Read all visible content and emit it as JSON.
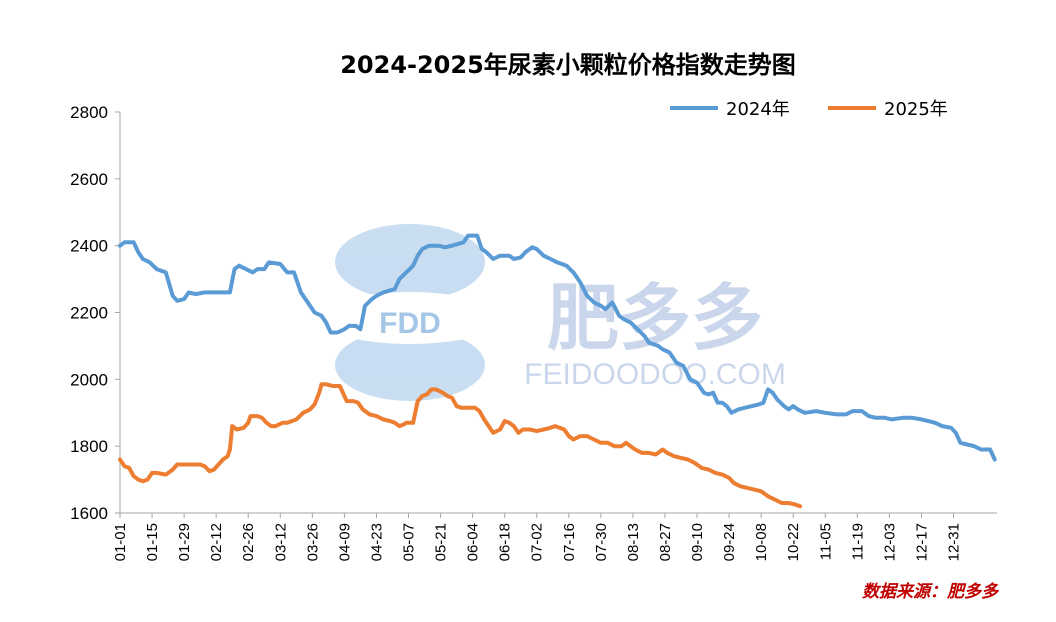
{
  "title": "2024-2025年尿素小颗粒价格指数走势图",
  "source_text": "数据来源：肥多多",
  "watermark": {
    "logo_text": "FDD",
    "brand_cn": "肥多多",
    "brand_url": "FEIDOODOO.COM"
  },
  "colors": {
    "s2024": "#5B9BD5",
    "s2025": "#ED7D31",
    "source": "#C00000",
    "axis": "#A6A6A6"
  },
  "chart_data": {
    "type": "line",
    "title": "2024-2025年尿素小颗粒价格指数走势图",
    "xlabel": "",
    "ylabel": "",
    "ylim": [
      1600,
      2800
    ],
    "yticks": [
      1600,
      1800,
      2000,
      2200,
      2400,
      2600,
      2800
    ],
    "xticks": [
      "01-01",
      "01-15",
      "01-29",
      "02-12",
      "02-26",
      "03-12",
      "03-26",
      "04-09",
      "04-23",
      "05-07",
      "05-21",
      "06-04",
      "06-18",
      "07-02",
      "07-16",
      "07-30",
      "08-13",
      "08-27",
      "09-10",
      "09-24",
      "10-08",
      "10-22",
      "11-05",
      "11-19",
      "12-03",
      "12-17",
      "12-31"
    ],
    "x_unit": "day-of-year, 1 = 01-01",
    "legend": "top-right",
    "grid": false,
    "series": [
      {
        "name": "2024年",
        "color": "#5B9BD5",
        "points": [
          [
            1,
            2400
          ],
          [
            3,
            2410
          ],
          [
            7,
            2410
          ],
          [
            9,
            2380
          ],
          [
            11,
            2360
          ],
          [
            14,
            2350
          ],
          [
            17,
            2330
          ],
          [
            21,
            2320
          ],
          [
            24,
            2250
          ],
          [
            26,
            2235
          ],
          [
            29,
            2240
          ],
          [
            31,
            2260
          ],
          [
            34,
            2255
          ],
          [
            38,
            2260
          ],
          [
            45,
            2260
          ],
          [
            49,
            2260
          ],
          [
            51,
            2330
          ],
          [
            53,
            2340
          ],
          [
            56,
            2330
          ],
          [
            59,
            2320
          ],
          [
            61,
            2330
          ],
          [
            64,
            2330
          ],
          [
            66,
            2350
          ],
          [
            71,
            2345
          ],
          [
            74,
            2320
          ],
          [
            77,
            2320
          ],
          [
            80,
            2260
          ],
          [
            83,
            2230
          ],
          [
            86,
            2200
          ],
          [
            89,
            2190
          ],
          [
            91,
            2170
          ],
          [
            93,
            2140
          ],
          [
            96,
            2140
          ],
          [
            99,
            2150
          ],
          [
            101,
            2160
          ],
          [
            104,
            2160
          ],
          [
            106,
            2150
          ],
          [
            108,
            2220
          ],
          [
            111,
            2240
          ],
          [
            113,
            2250
          ],
          [
            116,
            2260
          ],
          [
            121,
            2270
          ],
          [
            123,
            2300
          ],
          [
            126,
            2320
          ],
          [
            129,
            2340
          ],
          [
            131,
            2370
          ],
          [
            133,
            2390
          ],
          [
            136,
            2400
          ],
          [
            140,
            2400
          ],
          [
            143,
            2395
          ],
          [
            146,
            2400
          ],
          [
            151,
            2410
          ],
          [
            153,
            2430
          ],
          [
            157,
            2430
          ],
          [
            159,
            2390
          ],
          [
            161,
            2380
          ],
          [
            164,
            2360
          ],
          [
            167,
            2370
          ],
          [
            171,
            2370
          ],
          [
            173,
            2360
          ],
          [
            176,
            2365
          ],
          [
            178,
            2380
          ],
          [
            181,
            2395
          ],
          [
            183,
            2390
          ],
          [
            186,
            2370
          ],
          [
            189,
            2360
          ],
          [
            192,
            2350
          ],
          [
            196,
            2340
          ],
          [
            199,
            2320
          ],
          [
            202,
            2290
          ],
          [
            205,
            2250
          ],
          [
            208,
            2230
          ],
          [
            211,
            2220
          ],
          [
            213,
            2210
          ],
          [
            216,
            2230
          ],
          [
            219,
            2190
          ],
          [
            221,
            2180
          ],
          [
            224,
            2170
          ],
          [
            227,
            2150
          ],
          [
            230,
            2130
          ],
          [
            232,
            2110
          ],
          [
            236,
            2100
          ],
          [
            238,
            2090
          ],
          [
            241,
            2080
          ],
          [
            244,
            2050
          ],
          [
            247,
            2040
          ],
          [
            250,
            2000
          ],
          [
            253,
            1990
          ],
          [
            256,
            1960
          ],
          [
            258,
            1955
          ],
          [
            260,
            1960
          ],
          [
            262,
            1930
          ],
          [
            264,
            1930
          ],
          [
            266,
            1920
          ],
          [
            268,
            1900
          ],
          [
            271,
            1910
          ],
          [
            274,
            1915
          ],
          [
            277,
            1920
          ],
          [
            280,
            1925
          ],
          [
            282,
            1930
          ],
          [
            284,
            1970
          ],
          [
            286,
            1960
          ],
          [
            288,
            1940
          ],
          [
            291,
            1920
          ],
          [
            293,
            1910
          ],
          [
            295,
            1920
          ],
          [
            297,
            1910
          ],
          [
            300,
            1900
          ],
          [
            305,
            1905
          ],
          [
            309,
            1900
          ],
          [
            314,
            1895
          ],
          [
            318,
            1895
          ],
          [
            321,
            1905
          ],
          [
            325,
            1905
          ],
          [
            328,
            1890
          ],
          [
            331,
            1885
          ],
          [
            335,
            1885
          ],
          [
            338,
            1880
          ],
          [
            343,
            1885
          ],
          [
            347,
            1885
          ],
          [
            351,
            1880
          ],
          [
            354,
            1875
          ],
          [
            357,
            1870
          ],
          [
            360,
            1860
          ],
          [
            364,
            1855
          ],
          [
            366,
            1840
          ],
          [
            368,
            1810
          ],
          [
            371,
            1805
          ],
          [
            374,
            1800
          ],
          [
            377,
            1790
          ],
          [
            381,
            1790
          ],
          [
            383,
            1760
          ]
        ]
      },
      {
        "name": "2025年",
        "color": "#ED7D31",
        "points": [
          [
            1,
            1760
          ],
          [
            3,
            1740
          ],
          [
            5,
            1735
          ],
          [
            7,
            1710
          ],
          [
            9,
            1700
          ],
          [
            11,
            1695
          ],
          [
            13,
            1700
          ],
          [
            15,
            1720
          ],
          [
            17,
            1720
          ],
          [
            21,
            1715
          ],
          [
            24,
            1730
          ],
          [
            26,
            1745
          ],
          [
            31,
            1745
          ],
          [
            36,
            1745
          ],
          [
            38,
            1740
          ],
          [
            40,
            1725
          ],
          [
            42,
            1730
          ],
          [
            44,
            1745
          ],
          [
            46,
            1760
          ],
          [
            48,
            1770
          ],
          [
            49,
            1790
          ],
          [
            50,
            1860
          ],
          [
            52,
            1850
          ],
          [
            55,
            1855
          ],
          [
            57,
            1870
          ],
          [
            58,
            1890
          ],
          [
            61,
            1890
          ],
          [
            63,
            1885
          ],
          [
            65,
            1870
          ],
          [
            67,
            1860
          ],
          [
            69,
            1860
          ],
          [
            72,
            1870
          ],
          [
            74,
            1870
          ],
          [
            76,
            1875
          ],
          [
            78,
            1880
          ],
          [
            81,
            1900
          ],
          [
            84,
            1910
          ],
          [
            86,
            1925
          ],
          [
            88,
            1960
          ],
          [
            89,
            1985
          ],
          [
            91,
            1985
          ],
          [
            94,
            1980
          ],
          [
            97,
            1980
          ],
          [
            98,
            1965
          ],
          [
            100,
            1935
          ],
          [
            103,
            1935
          ],
          [
            105,
            1930
          ],
          [
            107,
            1910
          ],
          [
            110,
            1895
          ],
          [
            113,
            1890
          ],
          [
            116,
            1880
          ],
          [
            119,
            1875
          ],
          [
            121,
            1870
          ],
          [
            123,
            1860
          ],
          [
            125,
            1865
          ],
          [
            126,
            1870
          ],
          [
            129,
            1870
          ],
          [
            131,
            1935
          ],
          [
            133,
            1950
          ],
          [
            135,
            1955
          ],
          [
            137,
            1970
          ],
          [
            139,
            1970
          ],
          [
            142,
            1960
          ],
          [
            144,
            1950
          ],
          [
            146,
            1945
          ],
          [
            148,
            1920
          ],
          [
            150,
            1915
          ],
          [
            153,
            1915
          ],
          [
            156,
            1915
          ],
          [
            158,
            1905
          ],
          [
            160,
            1880
          ],
          [
            162,
            1860
          ],
          [
            164,
            1840
          ],
          [
            167,
            1850
          ],
          [
            169,
            1875
          ],
          [
            171,
            1870
          ],
          [
            173,
            1860
          ],
          [
            175,
            1840
          ],
          [
            177,
            1850
          ],
          [
            180,
            1850
          ],
          [
            183,
            1845
          ],
          [
            186,
            1850
          ],
          [
            189,
            1855
          ],
          [
            191,
            1860
          ],
          [
            193,
            1855
          ],
          [
            195,
            1850
          ],
          [
            197,
            1830
          ],
          [
            199,
            1820
          ],
          [
            202,
            1830
          ],
          [
            205,
            1830
          ],
          [
            208,
            1820
          ],
          [
            211,
            1810
          ],
          [
            214,
            1810
          ],
          [
            217,
            1800
          ],
          [
            220,
            1800
          ],
          [
            222,
            1810
          ],
          [
            224,
            1800
          ],
          [
            226,
            1790
          ],
          [
            229,
            1780
          ],
          [
            232,
            1780
          ],
          [
            235,
            1775
          ],
          [
            238,
            1790
          ],
          [
            240,
            1780
          ],
          [
            243,
            1770
          ],
          [
            246,
            1765
          ],
          [
            249,
            1760
          ],
          [
            252,
            1750
          ],
          [
            255,
            1735
          ],
          [
            258,
            1730
          ],
          [
            261,
            1720
          ],
          [
            264,
            1715
          ],
          [
            267,
            1705
          ],
          [
            269,
            1690
          ],
          [
            272,
            1680
          ],
          [
            275,
            1675
          ],
          [
            278,
            1670
          ],
          [
            281,
            1665
          ],
          [
            284,
            1650
          ],
          [
            287,
            1640
          ],
          [
            290,
            1630
          ],
          [
            293,
            1630
          ],
          [
            296,
            1625
          ],
          [
            298,
            1620
          ]
        ]
      }
    ]
  }
}
